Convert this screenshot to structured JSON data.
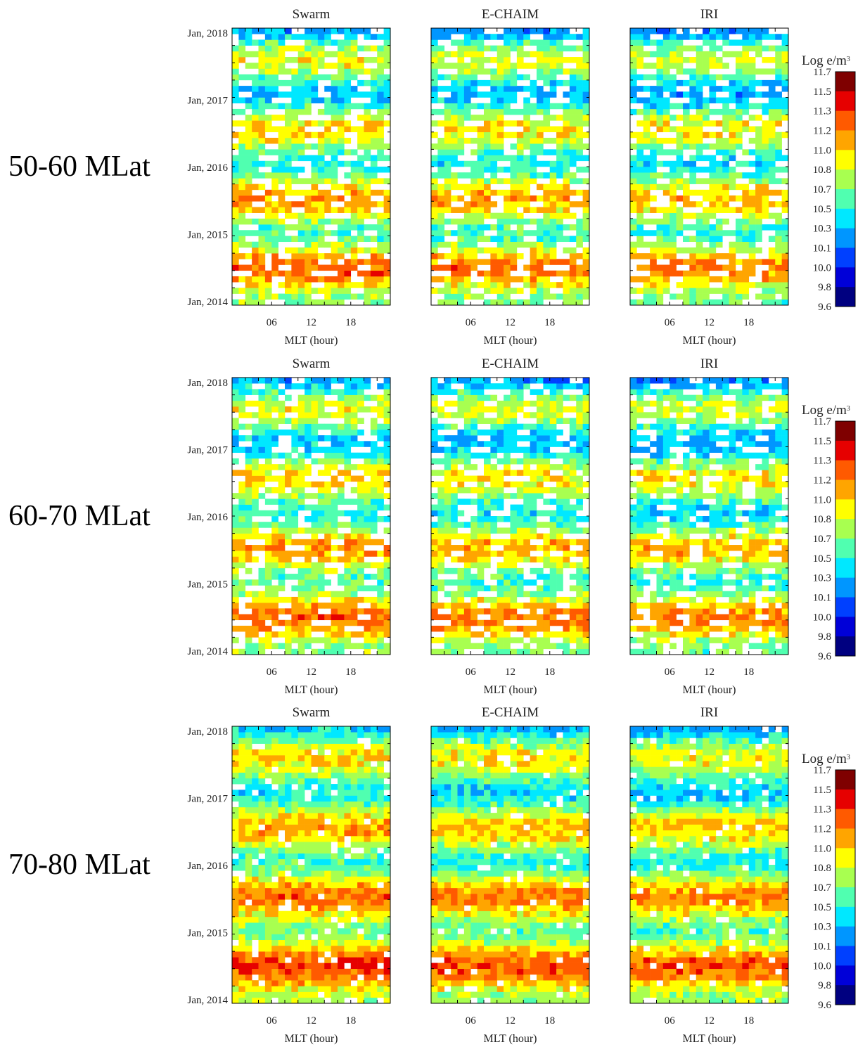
{
  "chart_data": {
    "type": "heatmap",
    "panel_titles": [
      "Swarm",
      "E-CHAIM",
      "IRI"
    ],
    "row_labels": [
      "50-60 MLat",
      "60-70 MLat",
      "70-80 MLat"
    ],
    "y_ticks": [
      "Jan, 2018",
      "Jan, 2017",
      "Jan, 2016",
      "Jan, 2015",
      "Jan, 2014"
    ],
    "x_ticks": [
      "06",
      "12",
      "18"
    ],
    "xlabel": "MLT (hour)",
    "x_range": [
      0,
      24
    ],
    "y_range": [
      "2014-01",
      "2018-01"
    ],
    "colorbar": {
      "title": "Log e/m",
      "title_superscript": "3",
      "ticks": [
        "11.7",
        "11.5",
        "11.3",
        "11.2",
        "11.0",
        "10.8",
        "10.7",
        "10.5",
        "10.3",
        "10.1",
        "10.0",
        "9.8",
        "9.6"
      ],
      "colors": [
        "#7f0000",
        "#e60000",
        "#ff5a00",
        "#ffa500",
        "#ffff00",
        "#a8ff50",
        "#50ffb0",
        "#00e8ff",
        "#0096ff",
        "#0040ff",
        "#0000d8",
        "#000080"
      ]
    },
    "grid": false,
    "pattern": "diagonal bands of local-time coverage drifting ~one full MLT cycle every ~4 months; values lower in winter (blue) and higher near solar maximum 2014-2015 (yellow/orange)"
  }
}
